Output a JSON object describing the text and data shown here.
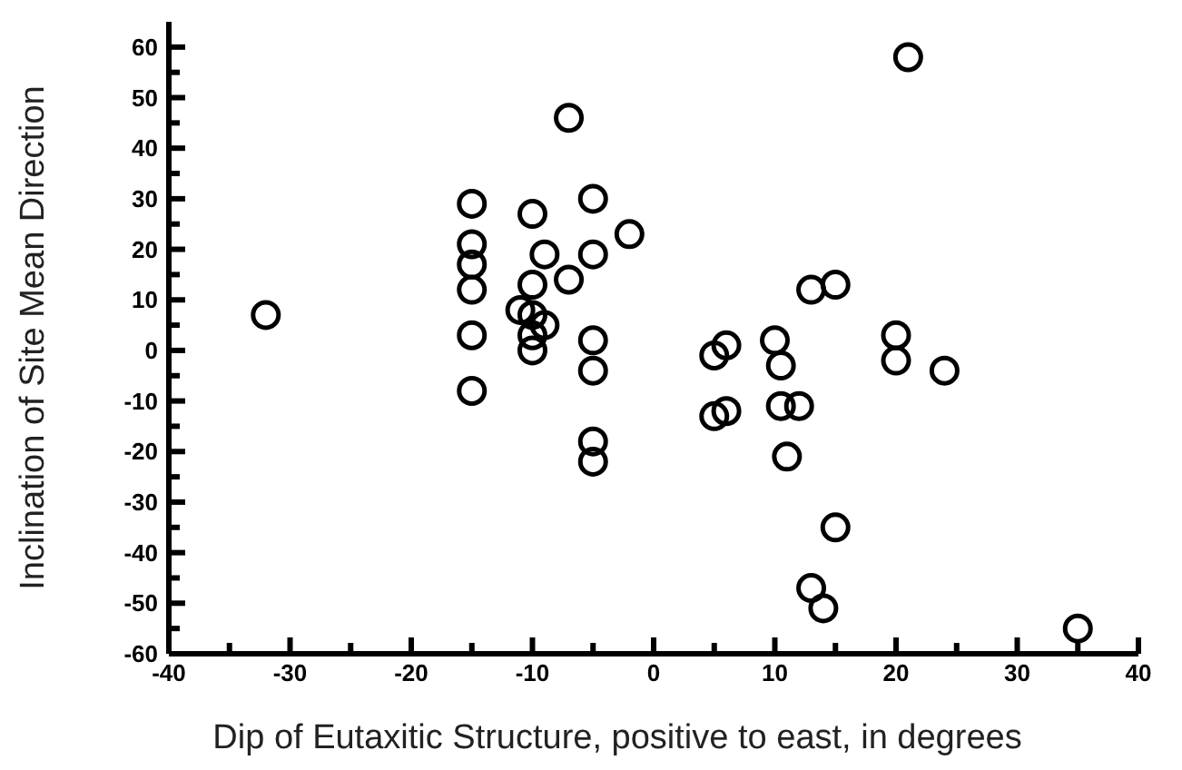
{
  "chart_data": {
    "type": "scatter",
    "xlabel": "Dip of Eutaxitic Structure, positive to east, in degrees",
    "ylabel": "Inclination of Site Mean Direction",
    "marker": "circle",
    "xlim": [
      -40,
      40
    ],
    "ylim": [
      -60,
      65
    ],
    "xticks": [
      -40,
      {
        "value": -35,
        "label": null
      },
      -30,
      {
        "value": -25,
        "label": null
      },
      -20,
      {
        "value": -15,
        "label": null
      },
      -10,
      {
        "value": -5,
        "label": null
      },
      0,
      {
        "value": 5,
        "label": null
      },
      10,
      {
        "value": 15,
        "label": null
      },
      20,
      {
        "value": 25,
        "label": null
      },
      30,
      {
        "value": 35,
        "label": null
      },
      40
    ],
    "yticks": [
      -60,
      {
        "value": -55,
        "label": null
      },
      -50,
      {
        "value": -45,
        "label": null
      },
      -40,
      {
        "value": -35,
        "label": null
      },
      -30,
      {
        "value": -25,
        "label": null
      },
      -20,
      {
        "value": -15,
        "label": null
      },
      -10,
      {
        "value": -5,
        "label": null
      },
      0,
      {
        "value": 5,
        "label": null
      },
      10,
      {
        "value": 15,
        "label": null
      },
      20,
      {
        "value": 25,
        "label": null
      },
      30,
      {
        "value": 35,
        "label": null
      },
      40,
      {
        "value": 45,
        "label": null
      },
      50,
      {
        "value": 55,
        "label": null
      },
      60
    ],
    "series": [
      {
        "color": "#000000",
        "x": [
          -32,
          -15,
          -15,
          -15,
          -15,
          -15,
          -15,
          -10,
          -11,
          -10,
          -10,
          -9,
          -10,
          -10,
          -9,
          -7,
          -7,
          -5,
          -5,
          -5,
          -5,
          -5,
          -5,
          -2,
          5,
          6,
          5,
          6,
          10,
          10.5,
          10.5,
          12,
          11,
          13,
          15,
          20,
          20,
          24,
          21,
          15,
          13,
          14,
          35
        ],
        "values": [
          7,
          29,
          21,
          17,
          12,
          3,
          -8,
          27,
          8,
          13,
          7,
          5,
          3,
          0,
          19,
          14,
          46,
          30,
          19,
          2,
          -4,
          -18,
          -22,
          23,
          -1,
          1,
          -13,
          -12,
          2,
          -3,
          -11,
          -11,
          -21,
          12,
          13,
          3,
          -2,
          -4,
          58,
          -35,
          -47,
          -51,
          -55
        ]
      }
    ]
  }
}
